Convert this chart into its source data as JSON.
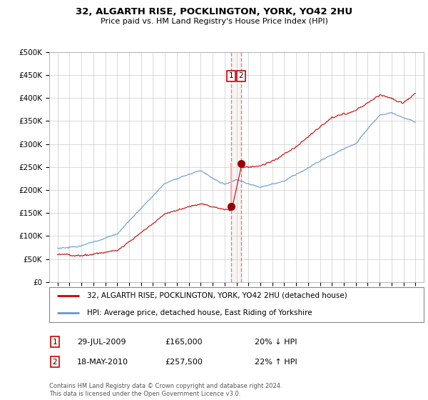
{
  "title1": "32, ALGARTH RISE, POCKLINGTON, YORK, YO42 2HU",
  "title2": "Price paid vs. HM Land Registry's House Price Index (HPI)",
  "ylabel_ticks": [
    "£0",
    "£50K",
    "£100K",
    "£150K",
    "£200K",
    "£250K",
    "£300K",
    "£350K",
    "£400K",
    "£450K",
    "£500K"
  ],
  "ytick_vals": [
    0,
    50000,
    100000,
    150000,
    200000,
    250000,
    300000,
    350000,
    400000,
    450000,
    500000
  ],
  "purchase1_date": 2009.57,
  "purchase1_price": 165000,
  "purchase2_date": 2010.38,
  "purchase2_price": 257500,
  "legend1": "32, ALGARTH RISE, POCKLINGTON, YORK, YO42 2HU (detached house)",
  "legend2": "HPI: Average price, detached house, East Riding of Yorkshire",
  "note1_date": "29-JUL-2009",
  "note1_price": "£165,000",
  "note1_change": "20% ↓ HPI",
  "note2_date": "18-MAY-2010",
  "note2_price": "£257,500",
  "note2_change": "22% ↑ HPI",
  "footer": "Contains HM Land Registry data © Crown copyright and database right 2024.\nThis data is licensed under the Open Government Licence v3.0.",
  "line_color_red": "#cc0000",
  "line_color_blue": "#6699cc",
  "marker_color_red": "#990000",
  "vline_color": "#cc8888",
  "vspan_color": "#ddbbbb",
  "box_color": "#cc0000"
}
